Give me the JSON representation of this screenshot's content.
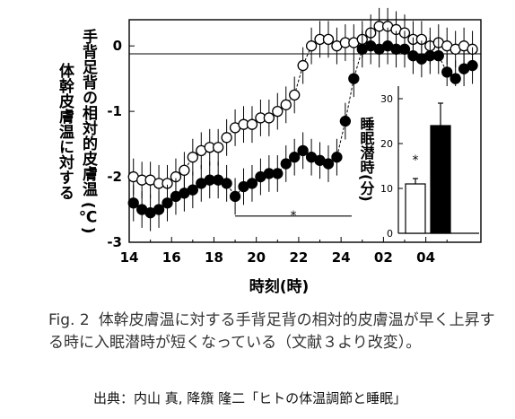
{
  "chart_data": [
    {
      "type": "line",
      "ylabel_line1": "体幹皮膚温に対する",
      "ylabel_line2": "手背足背の相対的皮膚温 (℃)",
      "xlabel": "時刻(時)",
      "x_ticks": [
        "14",
        "16",
        "18",
        "20",
        "22",
        "24",
        "02",
        "04"
      ],
      "y_ticks": [
        "0",
        "-1",
        "-2",
        "-3"
      ],
      "ylim": [
        -3,
        0.4
      ],
      "xlim": [
        14,
        30.6
      ],
      "reference_line": 0,
      "significance_label": "*",
      "significance_range": [
        19,
        24.5
      ],
      "significance_y": -2.6,
      "series": [
        {
          "marker": "open-circle",
          "x": [
            14.2,
            14.6,
            15.0,
            15.4,
            15.8,
            16.2,
            16.6,
            17.0,
            17.4,
            17.8,
            18.2,
            18.6,
            19.0,
            19.4,
            19.8,
            20.2,
            20.6,
            21.0,
            21.4,
            21.8,
            22.2,
            22.6,
            23.0,
            23.4,
            23.8,
            24.2,
            24.6,
            25.0,
            25.4,
            25.8,
            26.2,
            26.6,
            27.0,
            27.4,
            27.8,
            28.2,
            28.6,
            29.0,
            29.4,
            29.8,
            30.2
          ],
          "y": [
            -2.0,
            -2.05,
            -2.05,
            -2.1,
            -2.1,
            -2.0,
            -1.9,
            -1.7,
            -1.6,
            -1.55,
            -1.55,
            -1.4,
            -1.25,
            -1.2,
            -1.2,
            -1.1,
            -1.1,
            -1.0,
            -0.9,
            -0.75,
            -0.3,
            0.0,
            0.1,
            0.1,
            0.0,
            0.05,
            0.05,
            0.1,
            0.2,
            0.3,
            0.3,
            0.25,
            0.2,
            0.1,
            0.1,
            0.0,
            0.05,
            0.0,
            -0.05,
            0.0,
            -0.05
          ]
        },
        {
          "marker": "filled-circle",
          "x": [
            14.2,
            14.6,
            15.0,
            15.4,
            15.8,
            16.2,
            16.6,
            17.0,
            17.4,
            17.8,
            18.2,
            18.6,
            19.0,
            19.4,
            19.8,
            20.2,
            20.6,
            21.0,
            21.4,
            21.8,
            22.2,
            22.6,
            23.0,
            23.4,
            23.8,
            24.2,
            24.6,
            25.0,
            25.4,
            25.8,
            26.2,
            26.6,
            27.0,
            27.4,
            27.8,
            28.2,
            28.6,
            29.0,
            29.4,
            29.8,
            30.2
          ],
          "y": [
            -2.4,
            -2.5,
            -2.55,
            -2.5,
            -2.4,
            -2.3,
            -2.25,
            -2.2,
            -2.1,
            -2.05,
            -2.05,
            -2.1,
            -2.3,
            -2.15,
            -2.1,
            -2.0,
            -1.95,
            -1.95,
            -1.8,
            -1.7,
            -1.6,
            -1.7,
            -1.75,
            -1.8,
            -1.7,
            -1.15,
            -0.5,
            -0.05,
            0.0,
            -0.05,
            0.0,
            -0.05,
            -0.05,
            -0.15,
            -0.2,
            -0.15,
            -0.15,
            -0.4,
            -0.5,
            -0.35,
            -0.3
          ]
        }
      ]
    },
    {
      "type": "bar",
      "ylabel": "睡眠潜時(分)",
      "y_ticks": [
        "0",
        "10",
        "20",
        "30"
      ],
      "ylim": [
        0,
        30
      ],
      "categories": [
        "open",
        "filled"
      ],
      "values": [
        11,
        24
      ],
      "errors": [
        1.2,
        5
      ],
      "bar_colors": [
        "#ffffff",
        "#000000"
      ],
      "significance_label": "*"
    }
  ],
  "caption": {
    "lead": "Fig. 2",
    "text": "体幹皮膚温に対する手背足背の相対的皮膚温が早く上昇する時に入眠潜時が短くなっている（文献３より改変）。"
  },
  "source": "出典：内山 真, 降籏 隆二「ヒトの体温調節と睡眠」",
  "colors": {
    "line": "#000000",
    "caption_text": "#333333"
  }
}
